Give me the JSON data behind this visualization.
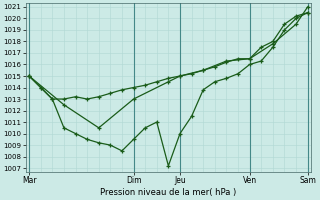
{
  "xlabel": "Pression niveau de la mer( hPa )",
  "ylim": [
    1007,
    1021
  ],
  "yticks": [
    1007,
    1008,
    1009,
    1010,
    1011,
    1012,
    1013,
    1014,
    1015,
    1016,
    1017,
    1018,
    1019,
    1020,
    1021
  ],
  "xtick_labels": [
    "Mar",
    "Dim",
    "Jeu",
    "Ven",
    "Sam"
  ],
  "xtick_positions": [
    0,
    9,
    13,
    19,
    24
  ],
  "bg_color": "#cceae6",
  "grid_minor_color": "#b0d8d4",
  "grid_major_color": "#88bbbb",
  "vline_color": "#448888",
  "line_color": "#1a5c1a",
  "line1_x": [
    0,
    1,
    2,
    3,
    4,
    5,
    6,
    7,
    8,
    9,
    10,
    11,
    12,
    13,
    14,
    15,
    16,
    17,
    18,
    19,
    20,
    21,
    22,
    23,
    24
  ],
  "line1_y": [
    1015.0,
    1014.0,
    1013.0,
    1013.0,
    1013.2,
    1013.0,
    1013.2,
    1013.5,
    1013.8,
    1014.0,
    1014.2,
    1014.5,
    1014.8,
    1015.0,
    1015.2,
    1015.5,
    1015.8,
    1016.2,
    1016.5,
    1016.5,
    1017.5,
    1018.0,
    1019.5,
    1020.2,
    1020.5
  ],
  "line2_x": [
    0,
    1,
    2,
    3,
    4,
    5,
    6,
    7,
    8,
    9,
    10,
    11,
    12,
    13,
    14,
    15,
    16,
    17,
    18,
    19,
    20,
    21,
    22,
    23,
    24
  ],
  "line2_y": [
    1015.0,
    1014.0,
    1013.0,
    1010.5,
    1010.0,
    1009.5,
    1009.2,
    1009.0,
    1008.5,
    1009.5,
    1010.5,
    1011.0,
    1007.2,
    1010.0,
    1011.5,
    1013.8,
    1014.5,
    1014.8,
    1015.2,
    1016.0,
    1016.3,
    1017.5,
    1019.0,
    1020.0,
    1020.5
  ],
  "line3_x": [
    0,
    3,
    6,
    9,
    12,
    13,
    15,
    17,
    19,
    21,
    23,
    24
  ],
  "line3_y": [
    1015.0,
    1012.5,
    1010.5,
    1013.0,
    1014.5,
    1015.0,
    1015.5,
    1016.3,
    1016.5,
    1017.8,
    1019.5,
    1021.0
  ]
}
